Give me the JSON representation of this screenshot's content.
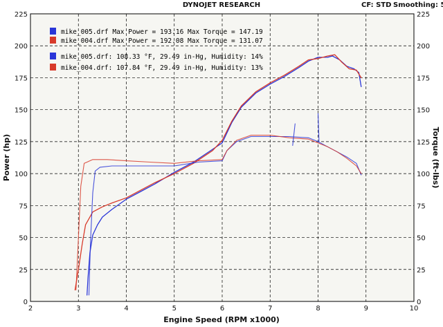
{
  "header": {
    "title": "DYNOJET RESEARCH",
    "cf": "CF: STD",
    "smoothing": "Smoothing: 5"
  },
  "legend": {
    "power_lines": [
      "mike_005.drf Max Power = 193.16 Max Torque = 147.19",
      "mike_004.drf Max Power = 192.08 Max Torque = 131.07"
    ],
    "weather_lines": [
      "mike_005.drf: 108.33 °F, 29.49 in-Hg, Humidity: 14%",
      "mike_004.drf: 107.84 °F, 29.49 in-Hg, Humidity: 13%"
    ]
  },
  "colors": {
    "run_005": "#2a36d8",
    "run_004": "#d83a2a",
    "plot_background": "#f6f6f2",
    "grid": "#000000"
  },
  "chart_data": {
    "type": "line",
    "title": "DYNOJET RESEARCH",
    "xlabel": "Engine Speed (RPM x1000)",
    "ylabel": "Power (hp)",
    "y2label": "Torque (ft-lbs)",
    "xlim": [
      2,
      10
    ],
    "ylim": [
      0,
      225
    ],
    "y2lim": [
      0,
      225
    ],
    "x_ticks": [
      2,
      3,
      4,
      5,
      6,
      7,
      8,
      9,
      10
    ],
    "y_ticks": [
      0,
      25,
      50,
      75,
      100,
      125,
      150,
      175,
      200,
      225
    ],
    "grid": true,
    "grid_style": "dashed",
    "legend_position": "top-left",
    "series": [
      {
        "name": "mike_005.drf",
        "measure": "power",
        "color": "#2a36d8",
        "points": [
          [
            3.18,
            5
          ],
          [
            3.2,
            18
          ],
          [
            3.24,
            38
          ],
          [
            3.3,
            52
          ],
          [
            3.4,
            60
          ],
          [
            3.5,
            66
          ],
          [
            3.7,
            72
          ],
          [
            4.0,
            80
          ],
          [
            4.3,
            86
          ],
          [
            4.6,
            92
          ],
          [
            5.0,
            101
          ],
          [
            5.4,
            109
          ],
          [
            5.8,
            119
          ],
          [
            6.0,
            124
          ],
          [
            6.2,
            140
          ],
          [
            6.4,
            152
          ],
          [
            6.7,
            163
          ],
          [
            7.0,
            170
          ],
          [
            7.3,
            176
          ],
          [
            7.6,
            183
          ],
          [
            7.8,
            188
          ],
          [
            8.0,
            191
          ],
          [
            8.2,
            191
          ],
          [
            8.3,
            192
          ],
          [
            8.45,
            189
          ],
          [
            8.6,
            184
          ],
          [
            8.75,
            182
          ],
          [
            8.85,
            179
          ],
          [
            8.9,
            168
          ]
        ]
      },
      {
        "name": "mike_004.drf",
        "measure": "power",
        "color": "#d83a2a",
        "points": [
          [
            2.93,
            9
          ],
          [
            3.0,
            25
          ],
          [
            3.08,
            45
          ],
          [
            3.15,
            60
          ],
          [
            3.3,
            70
          ],
          [
            3.5,
            74
          ],
          [
            3.7,
            77
          ],
          [
            4.0,
            81
          ],
          [
            4.3,
            87
          ],
          [
            4.6,
            93
          ],
          [
            5.0,
            100
          ],
          [
            5.4,
            108
          ],
          [
            5.8,
            118
          ],
          [
            6.0,
            126
          ],
          [
            6.2,
            141
          ],
          [
            6.4,
            153
          ],
          [
            6.7,
            164
          ],
          [
            7.0,
            171
          ],
          [
            7.3,
            177
          ],
          [
            7.6,
            184
          ],
          [
            7.8,
            189
          ],
          [
            8.0,
            190
          ],
          [
            8.2,
            192
          ],
          [
            8.35,
            193
          ],
          [
            8.5,
            187
          ],
          [
            8.65,
            182
          ],
          [
            8.8,
            181
          ],
          [
            8.9,
            175
          ]
        ]
      },
      {
        "name": "mike_005.drf",
        "measure": "torque",
        "color": "#2a36d8",
        "points": [
          [
            3.22,
            5
          ],
          [
            3.25,
            45
          ],
          [
            3.3,
            85
          ],
          [
            3.35,
            102
          ],
          [
            3.45,
            105
          ],
          [
            3.7,
            106
          ],
          [
            4.0,
            106
          ],
          [
            4.5,
            106
          ],
          [
            5.0,
            106
          ],
          [
            5.5,
            109
          ],
          [
            6.0,
            110
          ],
          [
            6.1,
            118
          ],
          [
            6.3,
            125
          ],
          [
            6.6,
            129
          ],
          [
            7.0,
            129
          ],
          [
            7.4,
            129
          ],
          [
            7.8,
            128
          ],
          [
            8.0,
            125
          ],
          [
            8.2,
            121
          ],
          [
            8.4,
            117
          ],
          [
            8.6,
            113
          ],
          [
            8.8,
            108
          ],
          [
            8.9,
            99
          ]
        ]
      },
      {
        "name": "mike_004.drf",
        "measure": "torque",
        "color": "#d83a2a",
        "points": [
          [
            2.95,
            9
          ],
          [
            3.0,
            50
          ],
          [
            3.05,
            90
          ],
          [
            3.12,
            108
          ],
          [
            3.3,
            111
          ],
          [
            3.6,
            111
          ],
          [
            4.0,
            110
          ],
          [
            4.5,
            109
          ],
          [
            5.0,
            108
          ],
          [
            5.5,
            110
          ],
          [
            6.0,
            111
          ],
          [
            6.1,
            118
          ],
          [
            6.3,
            126
          ],
          [
            6.6,
            130
          ],
          [
            7.0,
            130
          ],
          [
            7.4,
            128
          ],
          [
            7.8,
            127
          ],
          [
            8.0,
            124
          ],
          [
            8.2,
            121
          ],
          [
            8.4,
            117
          ],
          [
            8.6,
            112
          ],
          [
            8.8,
            106
          ],
          [
            8.9,
            100
          ]
        ]
      },
      {
        "name": "mike_005.drf",
        "measure": "spike",
        "color": "#2a36d8",
        "points": [
          [
            7.47,
            122
          ],
          [
            7.52,
            139
          ]
        ]
      },
      {
        "name": "mike_005.drf",
        "measure": "spike",
        "color": "#2a36d8",
        "points": [
          [
            8.0,
            147
          ],
          [
            8.02,
            125
          ]
        ]
      }
    ]
  }
}
